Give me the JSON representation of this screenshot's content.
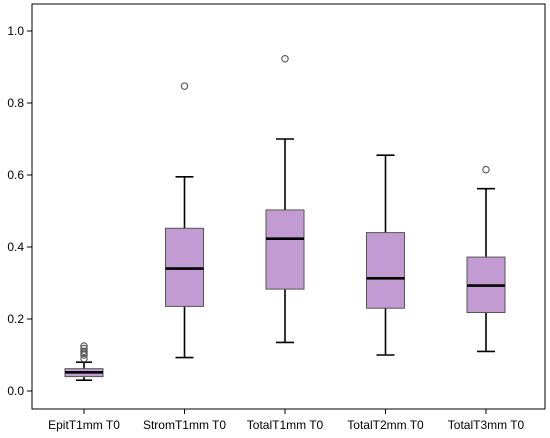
{
  "chart_data": {
    "type": "boxplot",
    "title": "",
    "xlabel": "",
    "ylabel": "",
    "ylim": [
      -0.05,
      1.08
    ],
    "y_ticks": [
      0.0,
      0.2,
      0.4,
      0.6,
      0.8,
      1.0
    ],
    "y_tick_labels": [
      "0.0",
      "0.2",
      "0.4",
      "0.6",
      "0.8",
      "1.0"
    ],
    "grid": false,
    "legend": "none",
    "categories": [
      "EpitT1mm T0",
      "StromT1mm T0",
      "TotalT1mm T0",
      "TotalT2mm T0",
      "TotalT3mm T0"
    ],
    "boxes": [
      {
        "whisker_low": 0.03,
        "q1": 0.04,
        "median": 0.052,
        "q3": 0.062,
        "whisker_high": 0.08,
        "outliers": [
          0.09,
          0.1,
          0.105,
          0.11,
          0.118,
          0.125
        ]
      },
      {
        "whisker_low": 0.093,
        "q1": 0.235,
        "median": 0.34,
        "q3": 0.452,
        "whisker_high": 0.595,
        "outliers": [
          0.847
        ]
      },
      {
        "whisker_low": 0.135,
        "q1": 0.283,
        "median": 0.423,
        "q3": 0.503,
        "whisker_high": 0.7,
        "outliers": [
          0.923
        ]
      },
      {
        "whisker_low": 0.1,
        "q1": 0.23,
        "median": 0.313,
        "q3": 0.44,
        "whisker_high": 0.655,
        "outliers": []
      },
      {
        "whisker_low": 0.11,
        "q1": 0.218,
        "median": 0.293,
        "q3": 0.372,
        "whisker_high": 0.562,
        "outliers": [
          0.615
        ]
      }
    ],
    "colors": {
      "box_fill": "#c39bd3",
      "box_stroke": "#555555",
      "median": "#000000",
      "whisker": "#000000",
      "outlier_stroke": "#555555",
      "axis": "#000000"
    }
  }
}
